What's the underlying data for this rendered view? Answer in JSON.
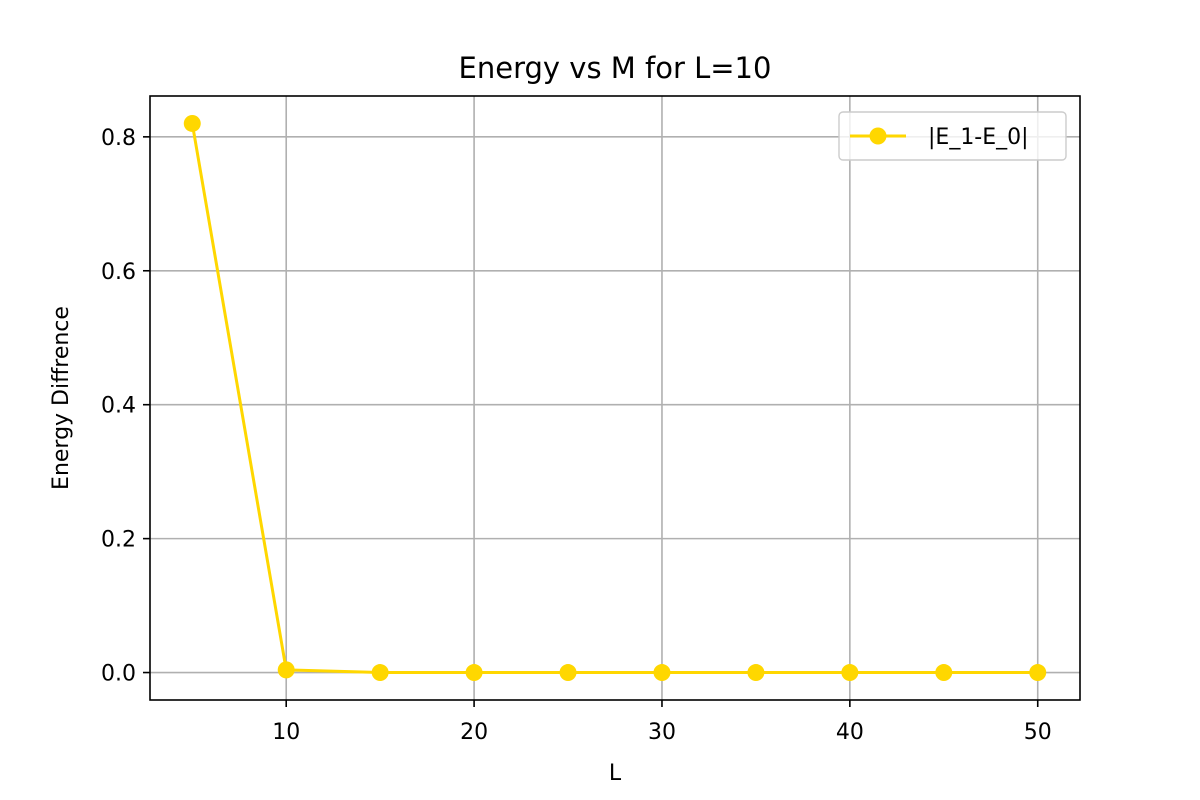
{
  "chart_data": {
    "type": "line",
    "title": "Energy vs M for L=10",
    "xlabel": "L",
    "ylabel": "Energy Diffrence",
    "x": [
      5,
      10,
      15,
      20,
      25,
      30,
      35,
      40,
      45,
      50
    ],
    "series": [
      {
        "name": "|E_1-E_0|",
        "values": [
          0.82,
          0.004,
          0.0,
          0.0,
          0.0,
          0.0,
          0.0,
          0.0,
          0.0,
          0.0
        ],
        "color": "#FFD700",
        "marker": "circle"
      }
    ],
    "xlim": [
      2.75,
      52.25
    ],
    "ylim": [
      -0.041,
      0.861
    ],
    "xticks": [
      10,
      20,
      30,
      40,
      50
    ],
    "xtick_labels": [
      "10",
      "20",
      "30",
      "40",
      "50"
    ],
    "yticks": [
      0.0,
      0.2,
      0.4,
      0.6,
      0.8
    ],
    "ytick_labels": [
      "0.0",
      "0.2",
      "0.4",
      "0.6",
      "0.8"
    ],
    "grid": true,
    "legend_position": "top-right"
  }
}
